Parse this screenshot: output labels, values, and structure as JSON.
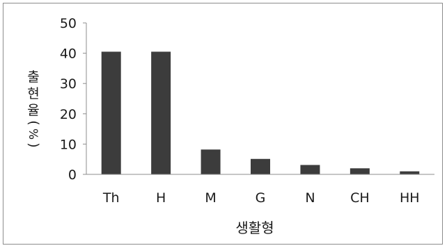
{
  "chart_data": {
    "type": "bar",
    "categories": [
      "Th",
      "H",
      "M",
      "G",
      "N",
      "CH",
      "HH"
    ],
    "values": [
      40.5,
      40.5,
      8.2,
      5.1,
      3.1,
      2.0,
      1.0
    ],
    "xlabel": "생활형",
    "ylabel": "출현율(%)",
    "ylim": [
      0,
      50
    ],
    "yticks": [
      "0",
      "10",
      "20",
      "30",
      "40",
      "50"
    ],
    "grid": false,
    "legend": "none",
    "bar_color": "#3c3c3c",
    "axis_color": "#8c8c8c"
  }
}
